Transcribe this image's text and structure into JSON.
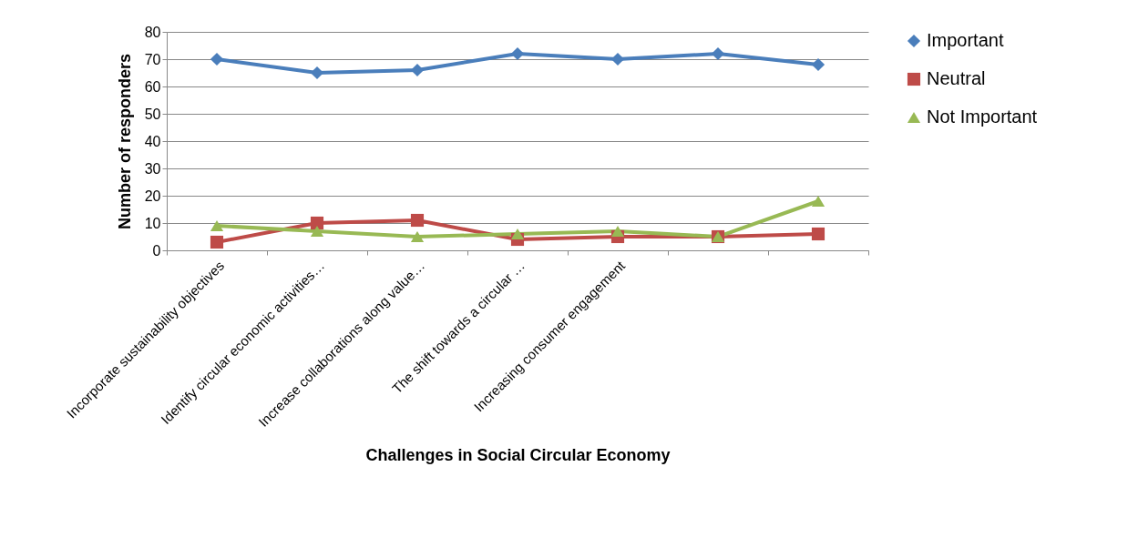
{
  "chart_data": {
    "type": "line",
    "xlabel": "Challenges in Social Circular Economy",
    "ylabel": "Number of responders",
    "categories": [
      "Incorporate sustainability objectives",
      "Identify circular economic activities…",
      "Increase collaborations along value…",
      "The shift towards a circular …",
      "Increasing consumer engagement",
      null,
      null
    ],
    "series": [
      {
        "name": "Important",
        "color": "#4a7ebb",
        "marker": "diamond",
        "values": [
          70,
          65,
          66,
          72,
          70,
          72,
          68
        ]
      },
      {
        "name": "Neutral",
        "color": "#be4b48",
        "marker": "square",
        "values": [
          3,
          10,
          11,
          4,
          5,
          5,
          6
        ]
      },
      {
        "name": "Not Important",
        "color": "#98b954",
        "marker": "triangle",
        "values": [
          9,
          7,
          5,
          6,
          7,
          5,
          18
        ]
      }
    ],
    "ylim": [
      0,
      80
    ],
    "yticks": [
      0,
      10,
      20,
      30,
      40,
      50,
      60,
      70,
      80
    ],
    "grid": "y",
    "legend": "right"
  }
}
